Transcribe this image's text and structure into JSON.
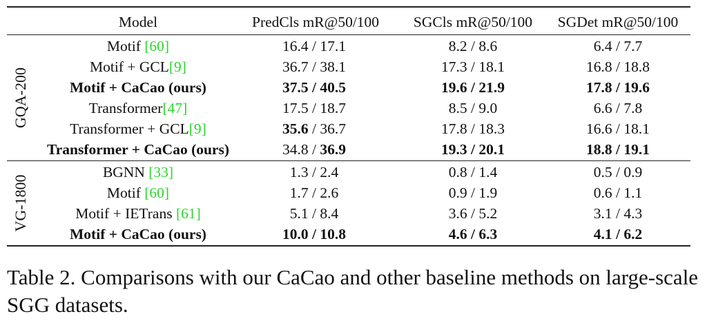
{
  "header": [
    "Model",
    "PredCls mR@50/100",
    "SGCls mR@50/100",
    "SGDet mR@50/100"
  ],
  "sep": " / ",
  "groups": [
    {
      "label": "GQA-200",
      "rows": [
        {
          "model": "Motif ",
          "ref": "[60]",
          "model_bold": false,
          "cells": [
            [
              "16.4",
              "17.1",
              false,
              false
            ],
            [
              "8.2",
              "8.6",
              false,
              false
            ],
            [
              "6.4",
              "7.7",
              false,
              false
            ]
          ]
        },
        {
          "model": "Motif + GCL",
          "ref": "[9]",
          "model_bold": false,
          "cells": [
            [
              "36.7",
              "38.1",
              false,
              false
            ],
            [
              "17.3",
              "18.1",
              false,
              false
            ],
            [
              "16.8",
              "18.8",
              false,
              false
            ]
          ]
        },
        {
          "model": "Motif + CaCao (ours)",
          "ref": "",
          "model_bold": true,
          "cells": [
            [
              "37.5",
              "40.5",
              true,
              true
            ],
            [
              "19.6",
              "21.9",
              true,
              true
            ],
            [
              "17.8",
              "19.6",
              true,
              true
            ]
          ]
        },
        {
          "model": "Transformer",
          "ref": "[47]",
          "model_bold": false,
          "cells": [
            [
              "17.5",
              "18.7",
              false,
              false
            ],
            [
              "8.5",
              "9.0",
              false,
              false
            ],
            [
              "6.6",
              "7.8",
              false,
              false
            ]
          ]
        },
        {
          "model": "Transformer + GCL",
          "ref": "[9]",
          "model_bold": false,
          "cells": [
            [
              "35.6",
              "36.7",
              true,
              false
            ],
            [
              "17.8",
              "18.3",
              false,
              false
            ],
            [
              "16.6",
              "18.1",
              false,
              false
            ]
          ]
        },
        {
          "model": "Transformer + CaCao (ours)",
          "ref": "",
          "model_bold": true,
          "cells": [
            [
              "34.8",
              "36.9",
              false,
              true
            ],
            [
              "19.3",
              "20.1",
              true,
              true
            ],
            [
              "18.8",
              "19.1",
              true,
              true
            ]
          ]
        }
      ]
    },
    {
      "label": "VG-1800",
      "rows": [
        {
          "model": "BGNN ",
          "ref": "[33]",
          "model_bold": false,
          "cells": [
            [
              "1.3",
              "2.4",
              false,
              false
            ],
            [
              "0.8",
              "1.4",
              false,
              false
            ],
            [
              "0.5",
              "0.9",
              false,
              false
            ]
          ]
        },
        {
          "model": "Motif ",
          "ref": "[60]",
          "model_bold": false,
          "cells": [
            [
              "1.7",
              "2.6",
              false,
              false
            ],
            [
              "0.9",
              "1.9",
              false,
              false
            ],
            [
              "0.6",
              "1.1",
              false,
              false
            ]
          ]
        },
        {
          "model": "Motif + IETrans ",
          "ref": "[61]",
          "model_bold": false,
          "cells": [
            [
              "5.1",
              "8.4",
              false,
              false
            ],
            [
              "3.6",
              "5.2",
              false,
              false
            ],
            [
              "3.1",
              "4.3",
              false,
              false
            ]
          ]
        },
        {
          "model": "Motif + CaCao (ours)",
          "ref": "",
          "model_bold": true,
          "cells": [
            [
              "10.0",
              "10.8",
              true,
              true
            ],
            [
              "4.6",
              "6.3",
              true,
              true
            ],
            [
              "4.1",
              "6.2",
              true,
              true
            ]
          ]
        }
      ]
    }
  ],
  "caption": "Table 2. Comparisons with our CaCao and other baseline methods on large-scale SGG datasets.",
  "colors": {
    "ref": "#2bd62b"
  }
}
